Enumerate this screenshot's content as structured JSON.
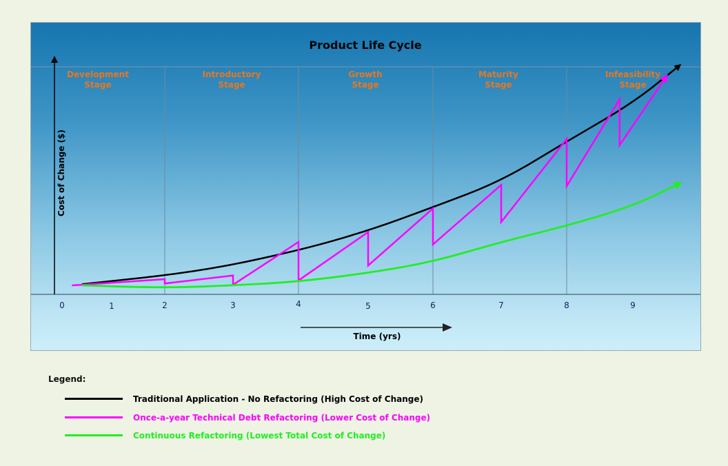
{
  "chart_data": {
    "type": "line",
    "title": "Product Life Cycle",
    "xlabel": "Time (yrs)",
    "ylabel": "Cost of Change ($)",
    "xlim": [
      0,
      10
    ],
    "x_ticks": [
      "0",
      "1",
      "2",
      "3",
      "4",
      "5",
      "6",
      "7",
      "8",
      "9"
    ],
    "stages": [
      {
        "label_line1": "Development",
        "label_line2": "Stage"
      },
      {
        "label_line1": "Introductory",
        "label_line2": "Stage"
      },
      {
        "label_line1": "Growth",
        "label_line2": "Stage"
      },
      {
        "label_line1": "Maturity",
        "label_line2": "Stage"
      },
      {
        "label_line1": "Infeasibility",
        "label_line2": "Stage"
      }
    ],
    "series": [
      {
        "name": "Traditional Application - No Refactoring (High Cost of Change)",
        "color": "#000000",
        "points": [
          [
            0.4,
            1.0
          ],
          [
            2.5,
            11
          ],
          [
            4.0,
            28
          ],
          [
            5.0,
            44
          ],
          [
            6.0,
            63
          ],
          [
            7.0,
            84
          ],
          [
            8.0,
            116
          ],
          [
            9.0,
            147
          ],
          [
            9.7,
            177
          ]
        ]
      },
      {
        "name": "Once-a-year Technical Debt Refactoring (Lower Cost of Change)",
        "color": "#ff00ff",
        "points": [
          [
            0.2,
            0
          ],
          [
            0.4,
            0.5
          ],
          [
            2.0,
            5
          ],
          [
            2.0,
            1.5
          ],
          [
            3.0,
            8
          ],
          [
            3.0,
            0.5
          ],
          [
            4.0,
            35
          ],
          [
            4.0,
            4
          ],
          [
            5.0,
            43
          ],
          [
            5.0,
            16
          ],
          [
            6.0,
            62
          ],
          [
            6.0,
            33
          ],
          [
            7.0,
            81
          ],
          [
            7.0,
            51
          ],
          [
            8.0,
            118
          ],
          [
            8.0,
            80
          ],
          [
            8.8,
            150
          ],
          [
            8.8,
            113
          ],
          [
            9.5,
            168
          ]
        ]
      },
      {
        "name": "Continuous Refactoring (Lowest Total Cost of Change)",
        "color": "#22ee22",
        "points": [
          [
            0.4,
            0
          ],
          [
            2.0,
            -2
          ],
          [
            3.0,
            0
          ],
          [
            4.0,
            3
          ],
          [
            5.0,
            10
          ],
          [
            6.0,
            19
          ],
          [
            7.0,
            35
          ],
          [
            8.0,
            48
          ],
          [
            9.0,
            64
          ],
          [
            9.7,
            82
          ]
        ]
      }
    ]
  },
  "legend": {
    "title": "Legend:",
    "items": [
      {
        "label": "Traditional Application - No Refactoring (High Cost of Change)",
        "color": "#000000",
        "text_color": "#000000"
      },
      {
        "label": "Once-a-year Technical Debt Refactoring (Lower Cost of Change)",
        "color": "#ff00ff",
        "text_color": "#ff00ff"
      },
      {
        "label": "Continuous Refactoring (Lowest Total Cost of Change)",
        "color": "#22ee22",
        "text_color": "#22ee22"
      }
    ]
  }
}
